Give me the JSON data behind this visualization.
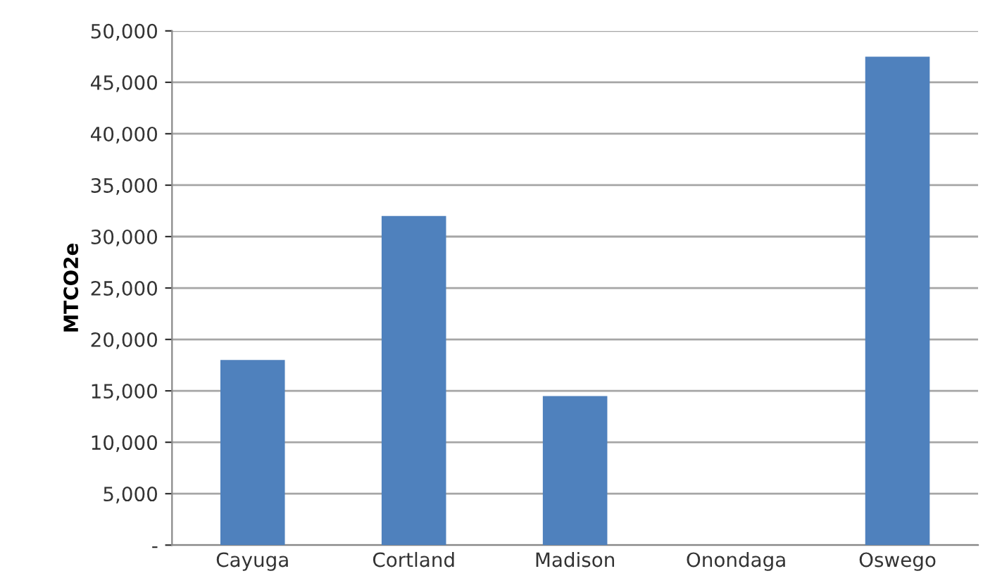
{
  "chart_data": {
    "type": "bar",
    "ylabel": "MTCO2e",
    "categories": [
      "Cayuga",
      "Cortland",
      "Madison",
      "Onondaga",
      "Oswego"
    ],
    "values": [
      18000,
      32000,
      14500,
      0,
      47500
    ],
    "color": "#4f81bd",
    "ylim": [
      0,
      50000
    ],
    "yticks": [
      {
        "value": 0,
        "label": "-"
      },
      {
        "value": 5000,
        "label": "5,000"
      },
      {
        "value": 10000,
        "label": "10,000"
      },
      {
        "value": 15000,
        "label": "15,000"
      },
      {
        "value": 20000,
        "label": "20,000"
      },
      {
        "value": 25000,
        "label": "25,000"
      },
      {
        "value": 30000,
        "label": "30,000"
      },
      {
        "value": 35000,
        "label": "35,000"
      },
      {
        "value": 40000,
        "label": "40,000"
      },
      {
        "value": 45000,
        "label": "45,000"
      },
      {
        "value": 50000,
        "label": "50,000"
      }
    ],
    "grid": "y"
  }
}
